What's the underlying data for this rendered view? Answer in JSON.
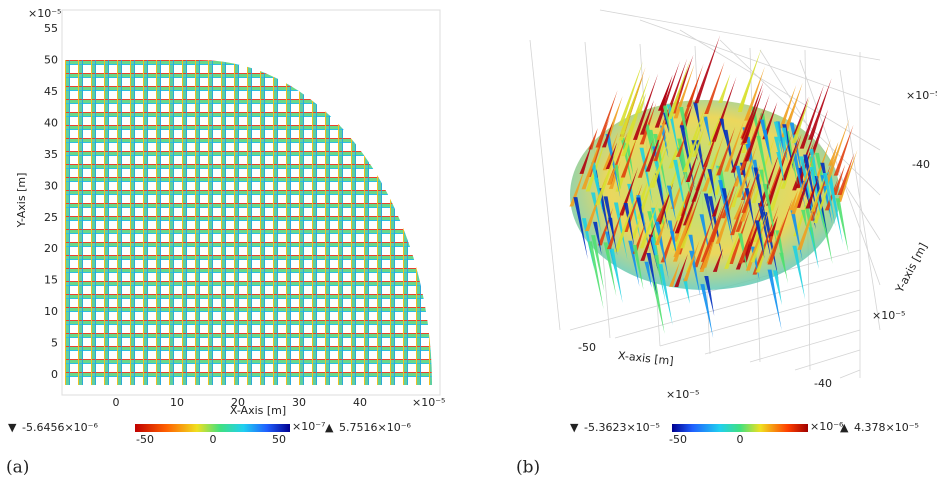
{
  "panels": [
    {
      "label": "(a)",
      "x_axis": {
        "title": "X-Axis  [m]",
        "exponent": "×10⁻⁵",
        "ticks": [
          0,
          10,
          20,
          30,
          40
        ]
      },
      "y_axis": {
        "title": "Y-Axis  [m]",
        "exponent": "×10⁻⁵",
        "ticks": [
          0,
          5,
          10,
          15,
          20,
          25,
          30,
          35,
          40,
          45,
          50,
          55
        ]
      },
      "colorbar": {
        "min_label": "-5.6456×10⁻⁶",
        "max_label": "5.7516×10⁻⁶",
        "ticks": [
          -50,
          0,
          50
        ],
        "exponent": "×10⁻⁷"
      }
    },
    {
      "label": "(b)",
      "axis_labels": [
        "×10⁻⁵",
        "-40",
        "Y-axis  [m]",
        "×10⁻⁵",
        "-50",
        "X-axis  [m]",
        "×10⁻⁵",
        "-40"
      ],
      "colorbar": {
        "min_label": "-5.3623×10⁻⁵",
        "max_label": "4.378×10⁻⁵",
        "ticks": [
          -50,
          0
        ],
        "exponent": "×10⁻⁶"
      }
    }
  ]
}
